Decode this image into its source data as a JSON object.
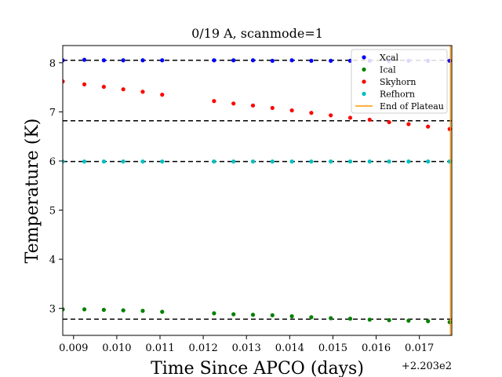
{
  "chart_data": {
    "type": "scatter",
    "title": "0/19 A, scanmode=1",
    "xlabel": "Time Since APCO (days)",
    "ylabel": "Temperature (K)",
    "x_offset_label": "+2.203e2",
    "xlim": [
      0.00875,
      0.01775
    ],
    "ylim": [
      2.45,
      8.35
    ],
    "x_ticks": [
      0.009,
      0.01,
      0.011,
      0.012,
      0.013,
      0.014,
      0.015,
      0.016,
      0.017
    ],
    "x_tick_labels": [
      "0.009",
      "0.010",
      "0.011",
      "0.012",
      "0.013",
      "0.014",
      "0.015",
      "0.016",
      "0.017"
    ],
    "y_ticks": [
      3,
      4,
      5,
      6,
      7,
      8
    ],
    "y_tick_labels": [
      "3",
      "4",
      "5",
      "6",
      "7",
      "8"
    ],
    "grid": false,
    "legend_position": "top-right",
    "x": [
      0.00875,
      0.00925,
      0.0097,
      0.01015,
      0.0106,
      0.01105,
      0.01225,
      0.0127,
      0.01315,
      0.0136,
      0.01405,
      0.0145,
      0.01495,
      0.0154,
      0.01585,
      0.0163,
      0.01675,
      0.0172,
      0.0177
    ],
    "series": [
      {
        "name": "Xcal",
        "color": "#0000ff",
        "values": [
          8.05,
          8.06,
          8.05,
          8.05,
          8.05,
          8.05,
          8.05,
          8.05,
          8.05,
          8.04,
          8.05,
          8.04,
          8.04,
          8.04,
          8.04,
          8.04,
          8.04,
          8.04,
          8.04
        ]
      },
      {
        "name": "Ical",
        "color": "#008000",
        "values": [
          2.98,
          2.98,
          2.97,
          2.96,
          2.95,
          2.93,
          2.9,
          2.88,
          2.87,
          2.86,
          2.84,
          2.82,
          2.8,
          2.79,
          2.77,
          2.76,
          2.75,
          2.74,
          2.72
        ]
      },
      {
        "name": "Skyhorn",
        "color": "#ff0000",
        "values": [
          7.62,
          7.56,
          7.51,
          7.46,
          7.41,
          7.35,
          7.22,
          7.17,
          7.13,
          7.08,
          7.03,
          6.98,
          6.93,
          6.88,
          6.84,
          6.79,
          6.75,
          6.7,
          6.65
        ]
      },
      {
        "name": "Refhorn",
        "color": "#00bfbf",
        "values": [
          5.99,
          5.99,
          5.99,
          5.99,
          5.99,
          5.99,
          5.99,
          5.99,
          5.99,
          5.99,
          5.99,
          5.99,
          5.99,
          5.99,
          5.99,
          5.99,
          5.99,
          5.99,
          5.99
        ]
      }
    ],
    "reference_lines": [
      8.05,
      6.82,
      5.99,
      2.78
    ],
    "reference_line_color": "#000000",
    "end_of_plateau": {
      "name": "End of Plateau",
      "x": 0.01772,
      "color": "#ff9900"
    }
  }
}
